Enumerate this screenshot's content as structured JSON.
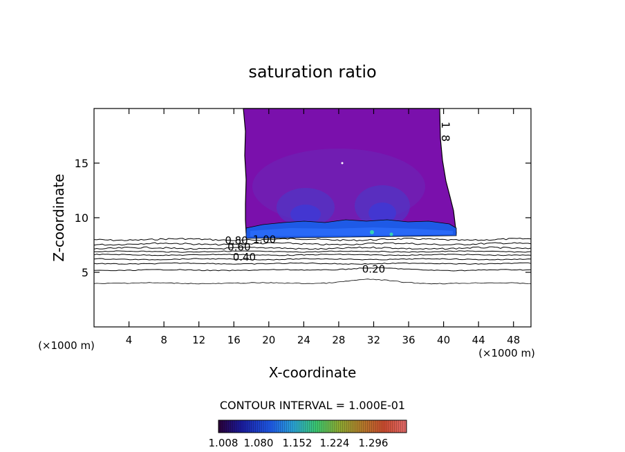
{
  "chart_data": {
    "type": "contour",
    "title": "saturation ratio",
    "xlabel": "X-coordinate",
    "ylabel": "Z-coordinate",
    "x_unit_label_left": "(×1000 m)",
    "x_unit_label_right": "(×1000 m)",
    "xlim": [
      0,
      50
    ],
    "ylim": [
      0,
      20
    ],
    "x_ticks": [
      4,
      8,
      12,
      16,
      20,
      24,
      28,
      32,
      36,
      40,
      44,
      48
    ],
    "y_ticks": [
      5,
      10,
      15
    ],
    "contour_interval_text": "CONTOUR INTERVAL = 1.000E-01",
    "contour_labels": [
      {
        "text": "0.80",
        "x": 16.3,
        "y": 7.9
      },
      {
        "text": "1.00",
        "x": 19.5,
        "y": 8.0
      },
      {
        "text": "0.60",
        "x": 16.6,
        "y": 7.3
      },
      {
        "text": "0.40",
        "x": 17.2,
        "y": 6.4
      },
      {
        "text": "0.20",
        "x": 32.0,
        "y": 5.3
      },
      {
        "text": "1",
        "x": 39.8,
        "y": 18.8
      },
      {
        "text": "8",
        "x": 39.8,
        "y": 17.6
      }
    ],
    "contour_levels_below_cloud": [
      {
        "value": 0.9,
        "y": 8.0
      },
      {
        "value": 0.8,
        "y": 7.6
      },
      {
        "value": 0.7,
        "y": 7.2
      },
      {
        "value": 0.6,
        "y": 6.9
      },
      {
        "value": 0.5,
        "y": 6.6
      },
      {
        "value": 0.4,
        "y": 6.2
      },
      {
        "value": 0.3,
        "y": 5.8
      },
      {
        "value": 0.2,
        "y": 5.2
      },
      {
        "value": 0.1,
        "y": 4.0
      }
    ],
    "cloud_region": {
      "x_start": 17.0,
      "x_end": 41.5,
      "z_base": 8.4,
      "z_top": 20
    },
    "colorbar": {
      "ticks": [
        "1.008",
        "1.080",
        "1.152",
        "1.224",
        "1.296"
      ],
      "colors": [
        "#2a0036",
        "#1a1a9a",
        "#1e5ae6",
        "#2aa2d2",
        "#3ac46e",
        "#8aa832",
        "#b07a2a",
        "#c84a2e",
        "#e06a6a"
      ]
    }
  }
}
